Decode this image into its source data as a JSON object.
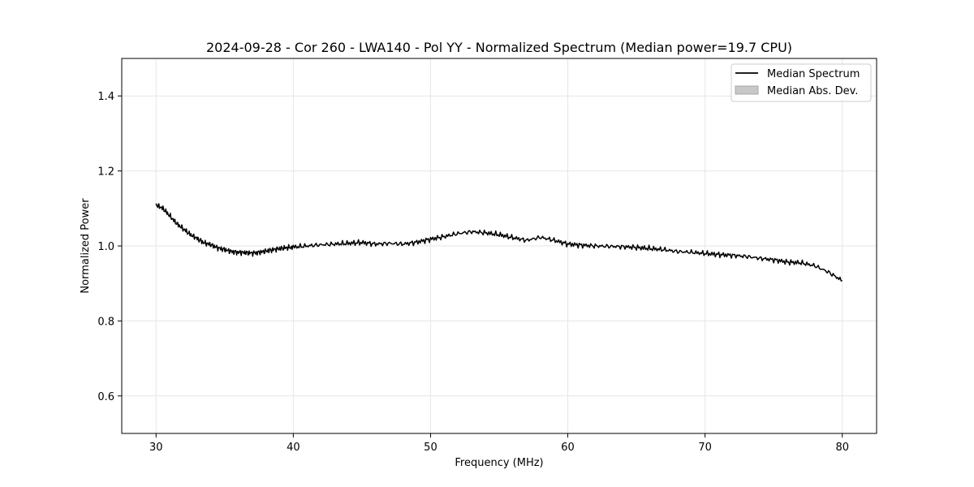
{
  "chart_data": {
    "type": "line",
    "title": "2024-09-28 - Cor 260 - LWA140 - Pol YY - Normalized Spectrum (Median power=19.7 CPU)",
    "xlabel": "Frequency (MHz)",
    "ylabel": "Normalized Power",
    "xlim": [
      27.5,
      82.5
    ],
    "ylim": [
      0.5,
      1.5
    ],
    "xticks": [
      30,
      40,
      50,
      60,
      70,
      80
    ],
    "yticks": [
      0.6,
      0.8,
      1.0,
      1.2,
      1.4
    ],
    "xtick_labels": [
      "30",
      "40",
      "50",
      "60",
      "70",
      "80"
    ],
    "ytick_labels": [
      "0.6",
      "0.8",
      "1.0",
      "1.2",
      "1.4"
    ],
    "grid": true,
    "legend_position": "top-right",
    "legend": [
      {
        "label": "Median Spectrum",
        "kind": "line",
        "color": "#000000"
      },
      {
        "label": "Median Abs. Dev.",
        "kind": "band",
        "color": "#c8c8c8"
      }
    ],
    "series": [
      {
        "name": "Median Spectrum",
        "color": "#000000",
        "x": [
          30,
          30.5,
          31,
          31.5,
          32,
          32.5,
          33,
          33.5,
          34,
          34.5,
          35,
          35.5,
          36,
          36.5,
          37,
          37.5,
          38,
          38.5,
          39,
          39.5,
          40,
          41,
          42,
          43,
          44,
          45,
          46,
          47,
          48,
          49,
          50,
          51,
          52,
          53,
          54,
          55,
          56,
          57,
          58,
          59,
          60,
          61,
          62,
          63,
          64,
          65,
          66,
          67,
          68,
          69,
          70,
          71,
          72,
          73,
          74,
          75,
          76,
          77,
          78,
          79,
          80
        ],
        "values": [
          1.11,
          1.1,
          1.08,
          1.06,
          1.045,
          1.03,
          1.02,
          1.008,
          1.003,
          0.995,
          0.99,
          0.985,
          0.983,
          0.982,
          0.981,
          0.983,
          0.986,
          0.99,
          0.993,
          0.995,
          0.997,
          1.0,
          1.003,
          1.005,
          1.007,
          1.009,
          1.005,
          1.007,
          1.005,
          1.01,
          1.018,
          1.025,
          1.033,
          1.038,
          1.035,
          1.03,
          1.022,
          1.015,
          1.023,
          1.015,
          1.005,
          1.002,
          1.0,
          0.999,
          0.998,
          0.996,
          0.993,
          0.99,
          0.985,
          0.983,
          0.98,
          0.977,
          0.975,
          0.972,
          0.967,
          0.963,
          0.957,
          0.955,
          0.947,
          0.93,
          0.907
        ]
      }
    ]
  }
}
